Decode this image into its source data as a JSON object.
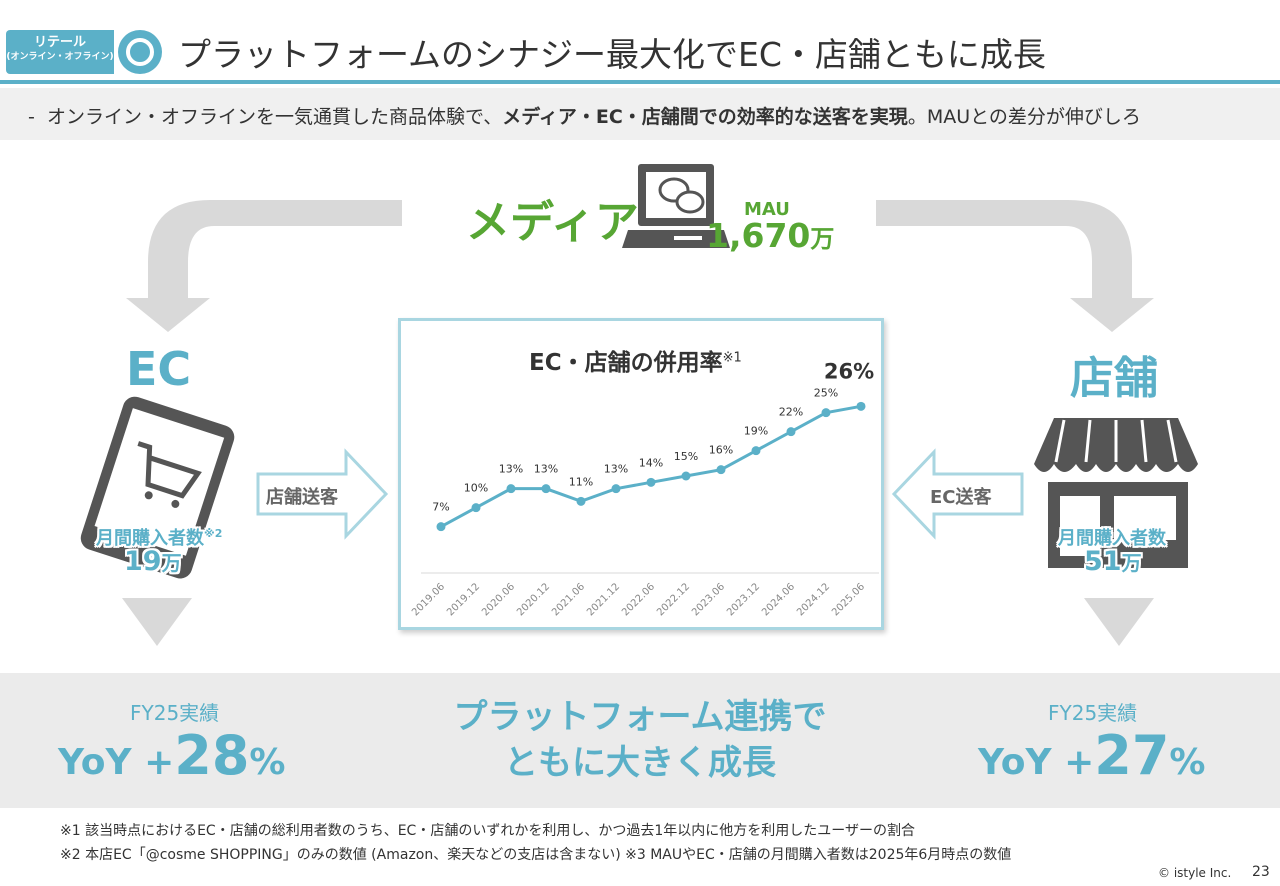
{
  "header": {
    "tag_line1": "リテール",
    "tag_line2": "(オンライン・オフライン)",
    "title": "プラットフォームのシナジー最大化でEC・店舗ともに成長"
  },
  "subtitle": {
    "dash": "-",
    "part1": "オンライン・オフラインを一気通貫した商品体験で、",
    "bold": "メディア・EC・店舗間での効率的な送客を実現",
    "part2": "。MAUとの差分が伸びしろ"
  },
  "media": {
    "label": "メディア",
    "mau_label": "MAU",
    "mau_value": "1,670",
    "mau_unit": "万"
  },
  "ec": {
    "label": "EC",
    "buyers_label": "月間購入者数",
    "buyers_note": "※2",
    "buyers_value": "19",
    "buyers_unit": "万",
    "fy_label": "FY25実績",
    "yoy_prefix": "YoY +",
    "yoy_value": "28",
    "yoy_suffix": "%"
  },
  "store": {
    "label": "店舗",
    "buyers_label": "月間購入者数",
    "buyers_value": "51",
    "buyers_unit": "万",
    "fy_label": "FY25実績",
    "yoy_prefix": "YoY +",
    "yoy_value": "27",
    "yoy_suffix": "%"
  },
  "arrows": {
    "to_ec": "店舗送客",
    "to_store": "EC送客"
  },
  "center_message": {
    "line1": "プラットフォーム連携で",
    "line2": "ともに大きく成長"
  },
  "chart_data": {
    "type": "line",
    "title": "EC・店舗の併用率",
    "title_note": "※1",
    "categories": [
      "2019.06",
      "2019.12",
      "2020.06",
      "2020.12",
      "2021.06",
      "2021.12",
      "2022.06",
      "2022.12",
      "2023.06",
      "2023.12",
      "2024.06",
      "2024.12",
      "2025.06"
    ],
    "values": [
      7,
      10,
      13,
      13,
      11,
      13,
      14,
      15,
      16,
      19,
      22,
      25,
      26
    ],
    "labels": [
      "7%",
      "10%",
      "13%",
      "13%",
      "11%",
      "13%",
      "14%",
      "15%",
      "16%",
      "19%",
      "22%",
      "25%",
      "26%"
    ],
    "ylim": [
      0,
      30
    ],
    "grid": false,
    "color": "#5bb0c8"
  },
  "footnotes": {
    "note1": "※1 該当時点におけるEC・店舗の総利用者数のうち、EC・店舗のいずれかを利用し、かつ過去1年以内に他方を利用したユーザーの割合",
    "note2": "※2 本店EC「@cosme SHOPPING」のみの数値 (Amazon、楽天などの支店は含まない)  ※3 MAUやEC・店舗の月間購入者数は2025年6月時点の数値"
  },
  "footer": {
    "copyright": "© istyle Inc.",
    "page": "23"
  },
  "colors": {
    "accent": "#5bb0c8",
    "media_green": "#57a634",
    "icon_gray": "#555555",
    "arrow_gray": "#d9d9d9"
  }
}
